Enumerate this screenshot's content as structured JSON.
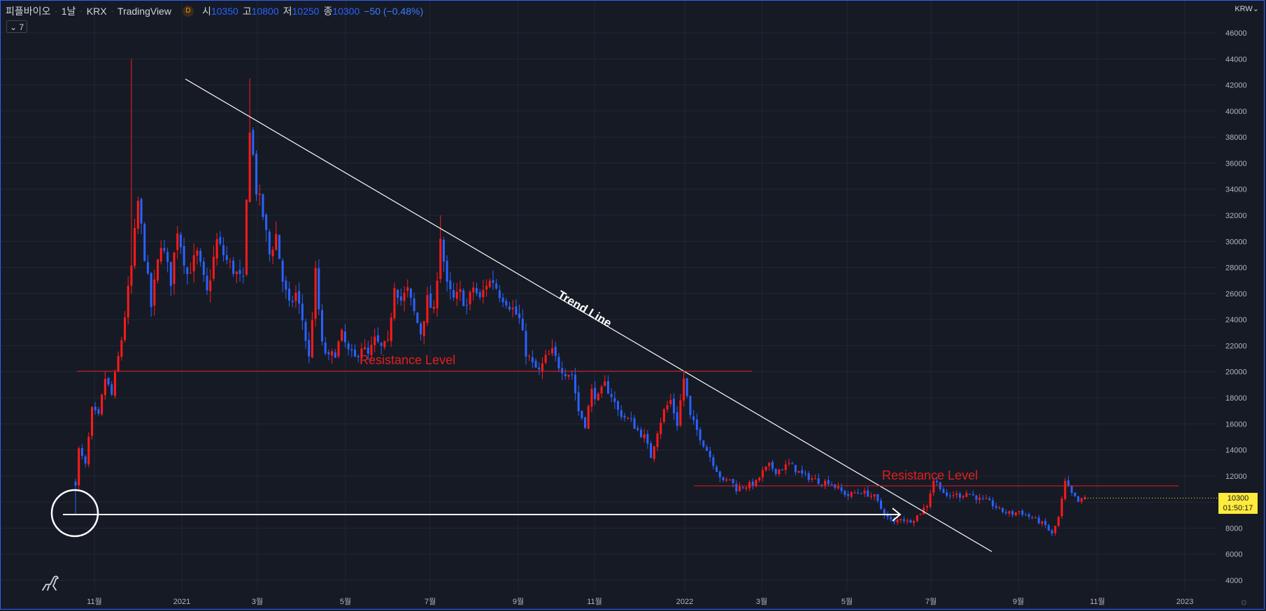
{
  "header": {
    "symbol": "피플바이오",
    "interval": "1날",
    "exchange": "KRX",
    "source": "TradingView",
    "badge": "D",
    "open_label": "시",
    "open": "10350",
    "high_label": "고",
    "high": "10800",
    "low_label": "저",
    "low": "10250",
    "close_label": "종",
    "close": "10300",
    "change": "−50 (−0.48%)"
  },
  "indicator_toggle": "⌄ 7",
  "currency": "KRW⌄",
  "price_tag": {
    "price": "10300",
    "countdown": "01:50:17"
  },
  "colors": {
    "background": "#161a25",
    "up": "#ff1a1a",
    "down": "#2962ff",
    "annotation_red": "#e21f1f",
    "grid": "#232732",
    "annotation_white": "#ffffff"
  },
  "icons": {
    "logo": "tradingview-dino-icon",
    "settings": "gear-icon"
  },
  "chart_data": {
    "type": "candlestick",
    "x_axis_labels": [
      "11월",
      "2021",
      "3월",
      "5월",
      "7월",
      "9월",
      "11월",
      "2022",
      "3월",
      "5월",
      "7월",
      "9월",
      "11월",
      "2023"
    ],
    "y_axis_labels": [
      "4000",
      "6000",
      "8000",
      "10000",
      "12000",
      "14000",
      "16000",
      "18000",
      "20000",
      "22000",
      "24000",
      "26000",
      "28000",
      "30000",
      "32000",
      "34000",
      "36000",
      "38000",
      "40000",
      "42000",
      "44000",
      "46000"
    ],
    "ylim": [
      4000,
      46000
    ],
    "price_path": [
      [
        0,
        11500
      ],
      [
        1,
        14000
      ],
      [
        3,
        12800
      ],
      [
        5,
        17000
      ],
      [
        7,
        16500
      ],
      [
        9,
        19500
      ],
      [
        11,
        18200
      ],
      [
        14,
        22500
      ],
      [
        17,
        28000
      ],
      [
        19,
        33000
      ],
      [
        21,
        29000
      ],
      [
        23,
        25000
      ],
      [
        26,
        30000
      ],
      [
        29,
        27000
      ],
      [
        31,
        31000
      ],
      [
        34,
        27500
      ],
      [
        37,
        29000
      ],
      [
        40,
        26000
      ],
      [
        43,
        30000
      ],
      [
        46,
        28500
      ],
      [
        49,
        27500
      ],
      [
        51,
        26800
      ],
      [
        53,
        39000
      ],
      [
        55,
        34000
      ],
      [
        57,
        32000
      ],
      [
        59,
        29000
      ],
      [
        61,
        30500
      ],
      [
        63,
        27000
      ],
      [
        65,
        25000
      ],
      [
        67,
        26000
      ],
      [
        69,
        24000
      ],
      [
        71,
        21000
      ],
      [
        73,
        27500
      ],
      [
        75,
        22000
      ],
      [
        77,
        21000
      ],
      [
        79,
        21500
      ],
      [
        81,
        22800
      ],
      [
        83,
        21500
      ],
      [
        85,
        21000
      ],
      [
        87,
        22000
      ],
      [
        89,
        21200
      ],
      [
        91,
        22400
      ],
      [
        93,
        21800
      ],
      [
        95,
        22100
      ],
      [
        97,
        26800
      ],
      [
        99,
        25500
      ],
      [
        101,
        26200
      ],
      [
        103,
        24500
      ],
      [
        105,
        23000
      ],
      [
        107,
        25500
      ],
      [
        109,
        24500
      ],
      [
        111,
        30500
      ],
      [
        113,
        26500
      ],
      [
        115,
        25500
      ],
      [
        117,
        26000
      ],
      [
        119,
        25000
      ],
      [
        121,
        26500
      ],
      [
        123,
        25500
      ],
      [
        125,
        26800
      ],
      [
        127,
        27000
      ],
      [
        129,
        26000
      ],
      [
        131,
        25500
      ],
      [
        133,
        24800
      ],
      [
        135,
        24000
      ],
      [
        137,
        21500
      ],
      [
        139,
        20500
      ],
      [
        141,
        20000
      ],
      [
        143,
        21000
      ],
      [
        145,
        21500
      ],
      [
        147,
        20500
      ],
      [
        149,
        20000
      ],
      [
        151,
        19800
      ],
      [
        153,
        17000
      ],
      [
        155,
        16000
      ],
      [
        157,
        18500
      ],
      [
        159,
        18000
      ],
      [
        161,
        19000
      ],
      [
        163,
        18200
      ],
      [
        165,
        17000
      ],
      [
        167,
        16500
      ],
      [
        169,
        16200
      ],
      [
        171,
        15500
      ],
      [
        173,
        15000
      ],
      [
        175,
        13500
      ],
      [
        177,
        15500
      ],
      [
        179,
        17000
      ],
      [
        181,
        17800
      ],
      [
        183,
        16000
      ],
      [
        185,
        19500
      ],
      [
        187,
        16500
      ],
      [
        189,
        15500
      ],
      [
        191,
        14500
      ],
      [
        193,
        13500
      ],
      [
        195,
        12500
      ],
      [
        197,
        11500
      ],
      [
        199,
        11800
      ],
      [
        201,
        11000
      ],
      [
        203,
        11200
      ],
      [
        205,
        11300
      ],
      [
        207,
        11500
      ],
      [
        209,
        12300
      ],
      [
        211,
        12800
      ],
      [
        213,
        12400
      ],
      [
        215,
        12600
      ],
      [
        217,
        12900
      ],
      [
        219,
        12500
      ],
      [
        221,
        12100
      ],
      [
        223,
        11900
      ],
      [
        225,
        11700
      ],
      [
        227,
        11500
      ],
      [
        229,
        11600
      ],
      [
        231,
        11200
      ],
      [
        233,
        10800
      ],
      [
        235,
        10500
      ],
      [
        237,
        10700
      ],
      [
        239,
        10800
      ],
      [
        241,
        10600
      ],
      [
        243,
        10400
      ],
      [
        245,
        9500
      ],
      [
        247,
        8800
      ],
      [
        249,
        8400
      ],
      [
        251,
        8800
      ],
      [
        253,
        8500
      ],
      [
        255,
        8700
      ],
      [
        257,
        9200
      ],
      [
        259,
        9800
      ],
      [
        261,
        11700
      ],
      [
        263,
        11200
      ],
      [
        265,
        10300
      ],
      [
        267,
        10600
      ],
      [
        269,
        10500
      ],
      [
        271,
        10700
      ],
      [
        273,
        10500
      ],
      [
        275,
        10200
      ],
      [
        277,
        10100
      ],
      [
        279,
        9800
      ],
      [
        281,
        9400
      ],
      [
        283,
        9200
      ],
      [
        285,
        9100
      ],
      [
        287,
        9300
      ],
      [
        289,
        9000
      ],
      [
        291,
        8800
      ],
      [
        293,
        8500
      ],
      [
        295,
        8200
      ],
      [
        297,
        7500
      ],
      [
        299,
        8800
      ],
      [
        301,
        11500
      ],
      [
        303,
        10600
      ],
      [
        305,
        10000
      ],
      [
        307,
        10300
      ]
    ],
    "annotations": [
      {
        "kind": "text",
        "label": "Trend Line",
        "color": "#ffffff"
      },
      {
        "kind": "text",
        "label": "Resistance Level",
        "color": "#e21f1f"
      },
      {
        "kind": "text",
        "label": "Resistance Level",
        "color": "#e21f1f"
      }
    ]
  }
}
